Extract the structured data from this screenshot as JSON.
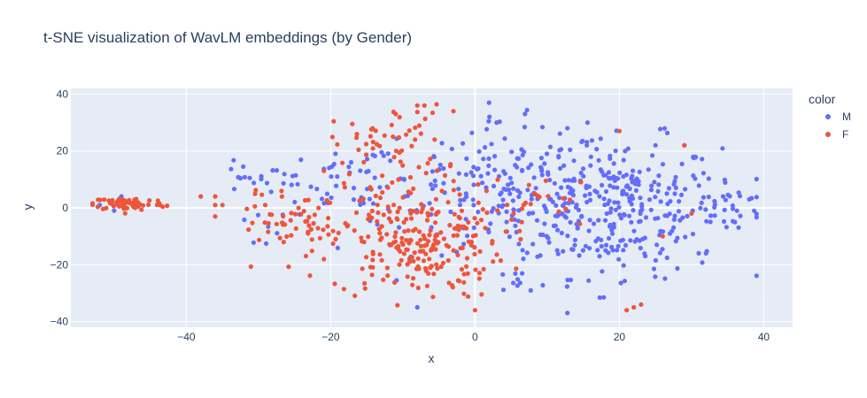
{
  "chart_data": {
    "type": "scatter",
    "title": "t-SNE visualization of WavLM embeddings (by Gender)",
    "xlabel": "x",
    "ylabel": "y",
    "xlim": [
      -56,
      44
    ],
    "ylim": [
      -42,
      42
    ],
    "x_ticks": [
      -40,
      -20,
      0,
      20,
      40
    ],
    "y_ticks": [
      -40,
      -20,
      0,
      20,
      40
    ],
    "grid": true,
    "legend": {
      "title": "color",
      "position": "right"
    },
    "series": [
      {
        "name": "M",
        "color": "#636efa",
        "clusters": [
          {
            "cx": 20,
            "cy": 0,
            "sx": 7,
            "sy": 12,
            "n": 300
          },
          {
            "cx": 5,
            "cy": 5,
            "sx": 7,
            "sy": 12,
            "n": 170
          },
          {
            "cx": -15,
            "cy": 10,
            "sx": 7,
            "sy": 6,
            "n": 60
          },
          {
            "cx": -30,
            "cy": 10,
            "sx": 4,
            "sy": 3,
            "n": 20
          },
          {
            "cx": 35,
            "cy": 2,
            "sx": 2.5,
            "sy": 4,
            "n": 25
          },
          {
            "cx": -30,
            "cy": -8,
            "sx": 2,
            "sy": 4,
            "n": 6
          },
          {
            "cx": 5,
            "cy": -28,
            "sx": 3,
            "sy": 3,
            "n": 10
          }
        ],
        "points": [
          [
            -52,
            1
          ],
          [
            -49,
            4
          ],
          [
            -50,
            -1
          ],
          [
            -8,
            -35
          ],
          [
            2,
            32
          ],
          [
            3,
            30
          ],
          [
            36,
            -5
          ],
          [
            38,
            3
          ],
          [
            31,
            -16
          ],
          [
            32,
            -16
          ],
          [
            25,
            22
          ],
          [
            29,
            22
          ]
        ]
      },
      {
        "name": "F",
        "color": "#ef553b",
        "clusters": [
          {
            "cx": -48,
            "cy": 1.5,
            "sx": 2.5,
            "sy": 1.2,
            "n": 70
          },
          {
            "cx": -8,
            "cy": -12,
            "sx": 6,
            "sy": 10,
            "n": 250
          },
          {
            "cx": -12,
            "cy": 22,
            "sx": 4,
            "sy": 7,
            "n": 60
          },
          {
            "cx": -24,
            "cy": -5,
            "sx": 4,
            "sy": 5,
            "n": 40
          },
          {
            "cx": -30,
            "cy": -5,
            "sx": 2,
            "sy": 6,
            "n": 15
          },
          {
            "cx": 10,
            "cy": 2,
            "sx": 4,
            "sy": 5,
            "n": 20
          }
        ],
        "points": [
          [
            -38,
            4
          ],
          [
            -36,
            1
          ],
          [
            -36,
            4
          ],
          [
            -35,
            1
          ],
          [
            -8,
            36
          ],
          [
            -7,
            36
          ],
          [
            -11,
            33
          ],
          [
            -3,
            34
          ],
          [
            0,
            -36
          ],
          [
            21,
            -36
          ],
          [
            22,
            -35
          ],
          [
            23,
            -34
          ],
          [
            20,
            27
          ],
          [
            29,
            22
          ],
          [
            26,
            -10
          ],
          [
            30,
            -2
          ]
        ]
      }
    ]
  }
}
